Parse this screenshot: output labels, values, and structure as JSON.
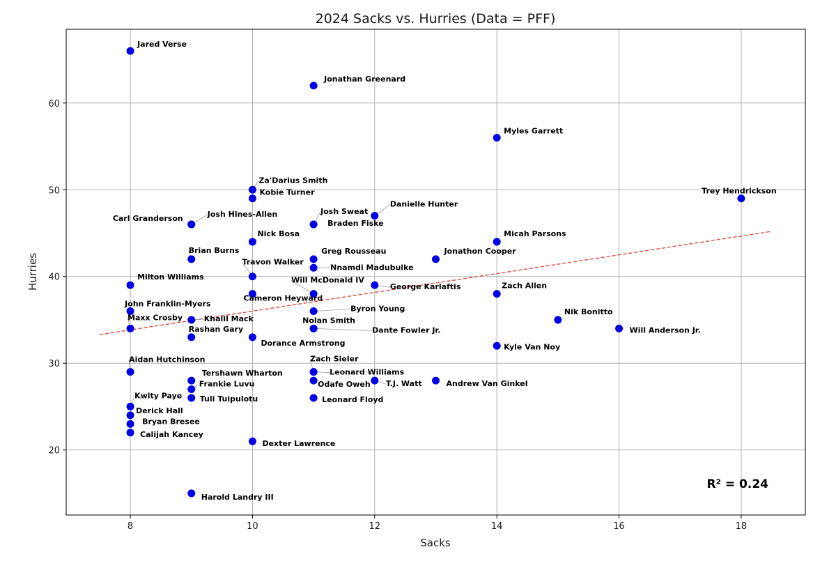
{
  "chart_data": {
    "type": "scatter",
    "title": "2024 Sacks vs. Hurries (Data = PFF)",
    "xlabel": "Sacks",
    "ylabel": "Hurries",
    "xlim": [
      6.95,
      19.05
    ],
    "ylim": [
      12.5,
      68.5
    ],
    "xticks": [
      8,
      10,
      12,
      14,
      16,
      18
    ],
    "yticks": [
      20,
      30,
      40,
      50,
      60
    ],
    "grid": true,
    "colors": {
      "points": "#0000e6",
      "trend": "#e8413a"
    },
    "trendline": {
      "x": [
        7.5,
        18.5
      ],
      "y": [
        33.3,
        45.2
      ]
    },
    "annotation": "R² = 0.24",
    "points": [
      {
        "name": "Jared Verse",
        "x": 8,
        "y": 66
      },
      {
        "name": "Jonathan Greenard",
        "x": 11,
        "y": 62
      },
      {
        "name": "Myles Garrett",
        "x": 14,
        "y": 56
      },
      {
        "name": "Za'Darius Smith",
        "x": 10,
        "y": 50
      },
      {
        "name": "Kobie Turner",
        "x": 10,
        "y": 49
      },
      {
        "name": "Trey Hendrickson",
        "x": 18,
        "y": 49
      },
      {
        "name": "Danielle Hunter",
        "x": 12,
        "y": 47
      },
      {
        "name": "Josh Sweat",
        "x": 11,
        "y": 46
      },
      {
        "name": "Braden Fiske",
        "x": 11,
        "y": 46
      },
      {
        "name": "Carl Granderson",
        "x": 9,
        "y": 46
      },
      {
        "name": "Josh Hines-Allen",
        "x": 9,
        "y": 46
      },
      {
        "name": "Nick Bosa",
        "x": 10,
        "y": 44
      },
      {
        "name": "Micah Parsons",
        "x": 14,
        "y": 44
      },
      {
        "name": "Brian Burns",
        "x": 9,
        "y": 42
      },
      {
        "name": "Greg Rousseau",
        "x": 11,
        "y": 42
      },
      {
        "name": "Jonathon Cooper",
        "x": 13,
        "y": 42
      },
      {
        "name": "Nnamdi Madubuike",
        "x": 11,
        "y": 41
      },
      {
        "name": "Travon Walker",
        "x": 10,
        "y": 40
      },
      {
        "name": "Milton Williams",
        "x": 8,
        "y": 39
      },
      {
        "name": "Will McDonald IV",
        "x": 11,
        "y": 38
      },
      {
        "name": "George Karlaftis",
        "x": 12,
        "y": 39
      },
      {
        "name": "Zach Allen",
        "x": 14,
        "y": 38
      },
      {
        "name": "Cameron Heyward",
        "x": 10,
        "y": 38
      },
      {
        "name": "John Franklin-Myers",
        "x": 8,
        "y": 36
      },
      {
        "name": "Byron Young",
        "x": 11,
        "y": 36
      },
      {
        "name": "Nik Bonitto",
        "x": 15,
        "y": 35
      },
      {
        "name": "Maxx Crosby",
        "x": 8,
        "y": 34
      },
      {
        "name": "Khalil Mack",
        "x": 9,
        "y": 35
      },
      {
        "name": "Nolan Smith",
        "x": 11,
        "y": 34
      },
      {
        "name": "Dante Fowler Jr.",
        "x": 11,
        "y": 34
      },
      {
        "name": "Will Anderson Jr.",
        "x": 16,
        "y": 34
      },
      {
        "name": "Rashan Gary",
        "x": 9,
        "y": 33
      },
      {
        "name": "Dorance Armstrong",
        "x": 10,
        "y": 33
      },
      {
        "name": "Kyle Van Noy",
        "x": 14,
        "y": 32
      },
      {
        "name": "Aidan Hutchinson",
        "x": 8,
        "y": 29
      },
      {
        "name": "Zach Sieler",
        "x": 11,
        "y": 29
      },
      {
        "name": "Leonard Williams",
        "x": 11,
        "y": 29
      },
      {
        "name": "Tershawn Wharton",
        "x": 9,
        "y": 28
      },
      {
        "name": "Odafe Oweh",
        "x": 11,
        "y": 28
      },
      {
        "name": "T.J. Watt",
        "x": 12,
        "y": 28
      },
      {
        "name": "Andrew Van Ginkel",
        "x": 13,
        "y": 28
      },
      {
        "name": "Frankie Luvu",
        "x": 9,
        "y": 27
      },
      {
        "name": "Tuli Tuipulotu",
        "x": 9,
        "y": 26
      },
      {
        "name": "Leonard Floyd",
        "x": 11,
        "y": 26
      },
      {
        "name": "Kwity Paye",
        "x": 8,
        "y": 25
      },
      {
        "name": "Derick Hall",
        "x": 8,
        "y": 24
      },
      {
        "name": "Bryan Bresee",
        "x": 8,
        "y": 23
      },
      {
        "name": "Calijah Kancey",
        "x": 8,
        "y": 22
      },
      {
        "name": "Dexter Lawrence",
        "x": 10,
        "y": 21
      },
      {
        "name": "Harold Landry III",
        "x": 9,
        "y": 15
      }
    ]
  }
}
